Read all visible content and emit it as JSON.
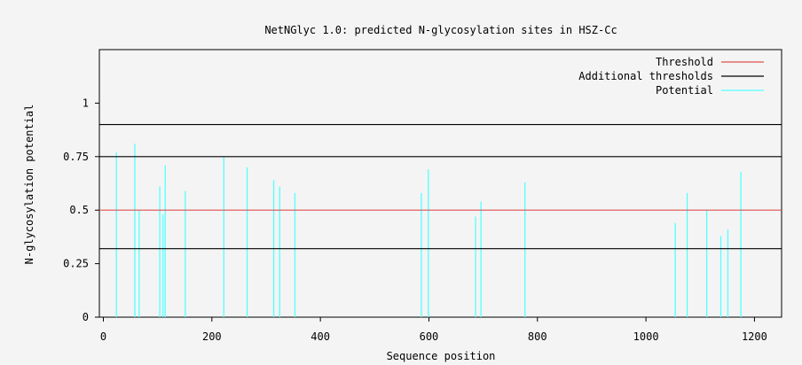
{
  "chart_data": {
    "type": "bar",
    "title": "NetNGlyc 1.0: predicted N-glycosylation sites in HSZ-Cc",
    "xlabel": "Sequence position",
    "ylabel": "N-glycosylation potential",
    "xlim": [
      0,
      1250
    ],
    "ylim": [
      0,
      1.25
    ],
    "xticks": [
      0,
      200,
      400,
      600,
      800,
      1000,
      1200
    ],
    "yticks": [
      0,
      0.25,
      0.5,
      0.75,
      1
    ],
    "xtick_labels": [
      "0",
      "200",
      "400",
      "600",
      "800",
      "1000",
      "1200"
    ],
    "ytick_labels": [
      "0",
      "0.25",
      "0.5",
      "0.75",
      "1"
    ],
    "threshold": 0.5,
    "additional_thresholds": [
      0.32,
      0.75,
      0.9
    ],
    "legend_position": "top-right",
    "grid": false,
    "colors": {
      "threshold": "#e05050",
      "additional": "#000000",
      "potential": "#55ffff",
      "frame": "#000000"
    },
    "legend": [
      {
        "label": "Threshold",
        "key": "threshold"
      },
      {
        "label": "Additional thresholds",
        "key": "additional"
      },
      {
        "label": "Potential",
        "key": "potential"
      }
    ],
    "series": [
      {
        "x": [
          24,
          58,
          66,
          104,
          110,
          114,
          151,
          222,
          265,
          314,
          325,
          353,
          586,
          599,
          686,
          696,
          777,
          1054,
          1076,
          1112,
          1138,
          1151,
          1175
        ],
        "values": [
          0.77,
          0.81,
          0.5,
          0.61,
          0.48,
          0.71,
          0.59,
          0.75,
          0.7,
          0.64,
          0.61,
          0.58,
          0.58,
          0.69,
          0.47,
          0.54,
          0.63,
          0.44,
          0.58,
          0.5,
          0.38,
          0.41,
          0.68
        ]
      }
    ]
  }
}
